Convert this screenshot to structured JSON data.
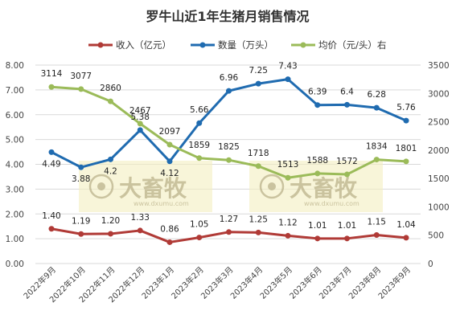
{
  "chart_data": {
    "type": "line",
    "title": "罗牛山近1年生猪月销售情况",
    "categories": [
      "2022年9月",
      "2022年10月",
      "2022年11月",
      "2022年12月",
      "2023年1月",
      "2023年2月",
      "2023年3月",
      "2023年4月",
      "2023年5月",
      "2023年6月",
      "2023年7月",
      "2023年8月",
      "2023年9月"
    ],
    "y_left": {
      "min": 0,
      "max": 8,
      "step": 1,
      "decimals": 2
    },
    "y_right": {
      "min": 0,
      "max": 3500,
      "step": 500,
      "decimals": 0
    },
    "grid": true,
    "legend_position": "top",
    "series": [
      {
        "name": "收入（亿元）",
        "axis": "left",
        "color": "#b03a36",
        "decimals": 2,
        "values": [
          1.4,
          1.19,
          1.2,
          1.33,
          0.86,
          1.05,
          1.27,
          1.25,
          1.12,
          1.01,
          1.01,
          1.15,
          1.04
        ]
      },
      {
        "name": "数量（万头）",
        "axis": "left",
        "color": "#1f6bb0",
        "decimals": 2,
        "values": [
          4.49,
          3.88,
          4.2,
          5.38,
          4.12,
          5.66,
          6.96,
          7.25,
          7.43,
          6.39,
          6.4,
          6.28,
          5.76
        ],
        "labels": [
          "4.49",
          "3.88",
          "4.2",
          "5.38",
          "4.12",
          "5.66",
          "6.96",
          "7.25",
          "7.43",
          "6.39",
          "6.4",
          "6.28",
          "5.76"
        ]
      },
      {
        "name": "均价（元/头）右",
        "axis": "right",
        "color": "#9bbb59",
        "decimals": 0,
        "values": [
          3114,
          3077,
          2860,
          2467,
          2097,
          1859,
          1825,
          1718,
          1513,
          1588,
          1572,
          1834,
          1801
        ]
      }
    ]
  },
  "watermark": {
    "brand": "大畜牧",
    "site": "www.dxumu.com"
  }
}
